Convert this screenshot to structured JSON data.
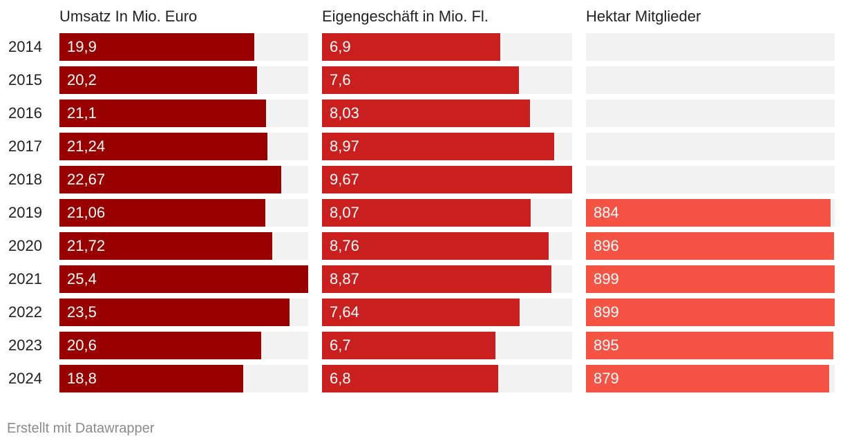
{
  "chart_data": {
    "type": "bar",
    "categories": [
      "2014",
      "2015",
      "2016",
      "2017",
      "2018",
      "2019",
      "2020",
      "2021",
      "2022",
      "2023",
      "2024"
    ],
    "series": [
      {
        "name": "Umsatz In Mio. Euro",
        "color": "#990000",
        "values": [
          19.9,
          20.2,
          21.1,
          21.24,
          22.67,
          21.06,
          21.72,
          25.4,
          23.5,
          20.6,
          18.8
        ],
        "labels": [
          "19,9",
          "20,2",
          "21,1",
          "21,24",
          "22,67",
          "21,06",
          "21,72",
          "25,4",
          "23,5",
          "20,6",
          "18,8"
        ],
        "max": 25.4
      },
      {
        "name": "Eigengeschäft in Mio. Fl.",
        "color": "#c91f1f",
        "values": [
          6.9,
          7.6,
          8.03,
          8.97,
          9.67,
          8.07,
          8.76,
          8.87,
          7.64,
          6.7,
          6.8
        ],
        "labels": [
          "6,9",
          "7,6",
          "8,03",
          "8,97",
          "9,67",
          "8,07",
          "8,76",
          "8,87",
          "7,64",
          "6,7",
          "6,8"
        ],
        "max": 9.67
      },
      {
        "name": "Hektar Mitglieder",
        "color": "#f55445",
        "values": [
          null,
          null,
          null,
          null,
          null,
          884,
          896,
          899,
          899,
          895,
          879
        ],
        "labels": [
          null,
          null,
          null,
          null,
          null,
          "884",
          "896",
          "899",
          "899",
          "895",
          "879"
        ],
        "max": 899
      }
    ]
  },
  "footer": "Erstellt mit Datawrapper"
}
